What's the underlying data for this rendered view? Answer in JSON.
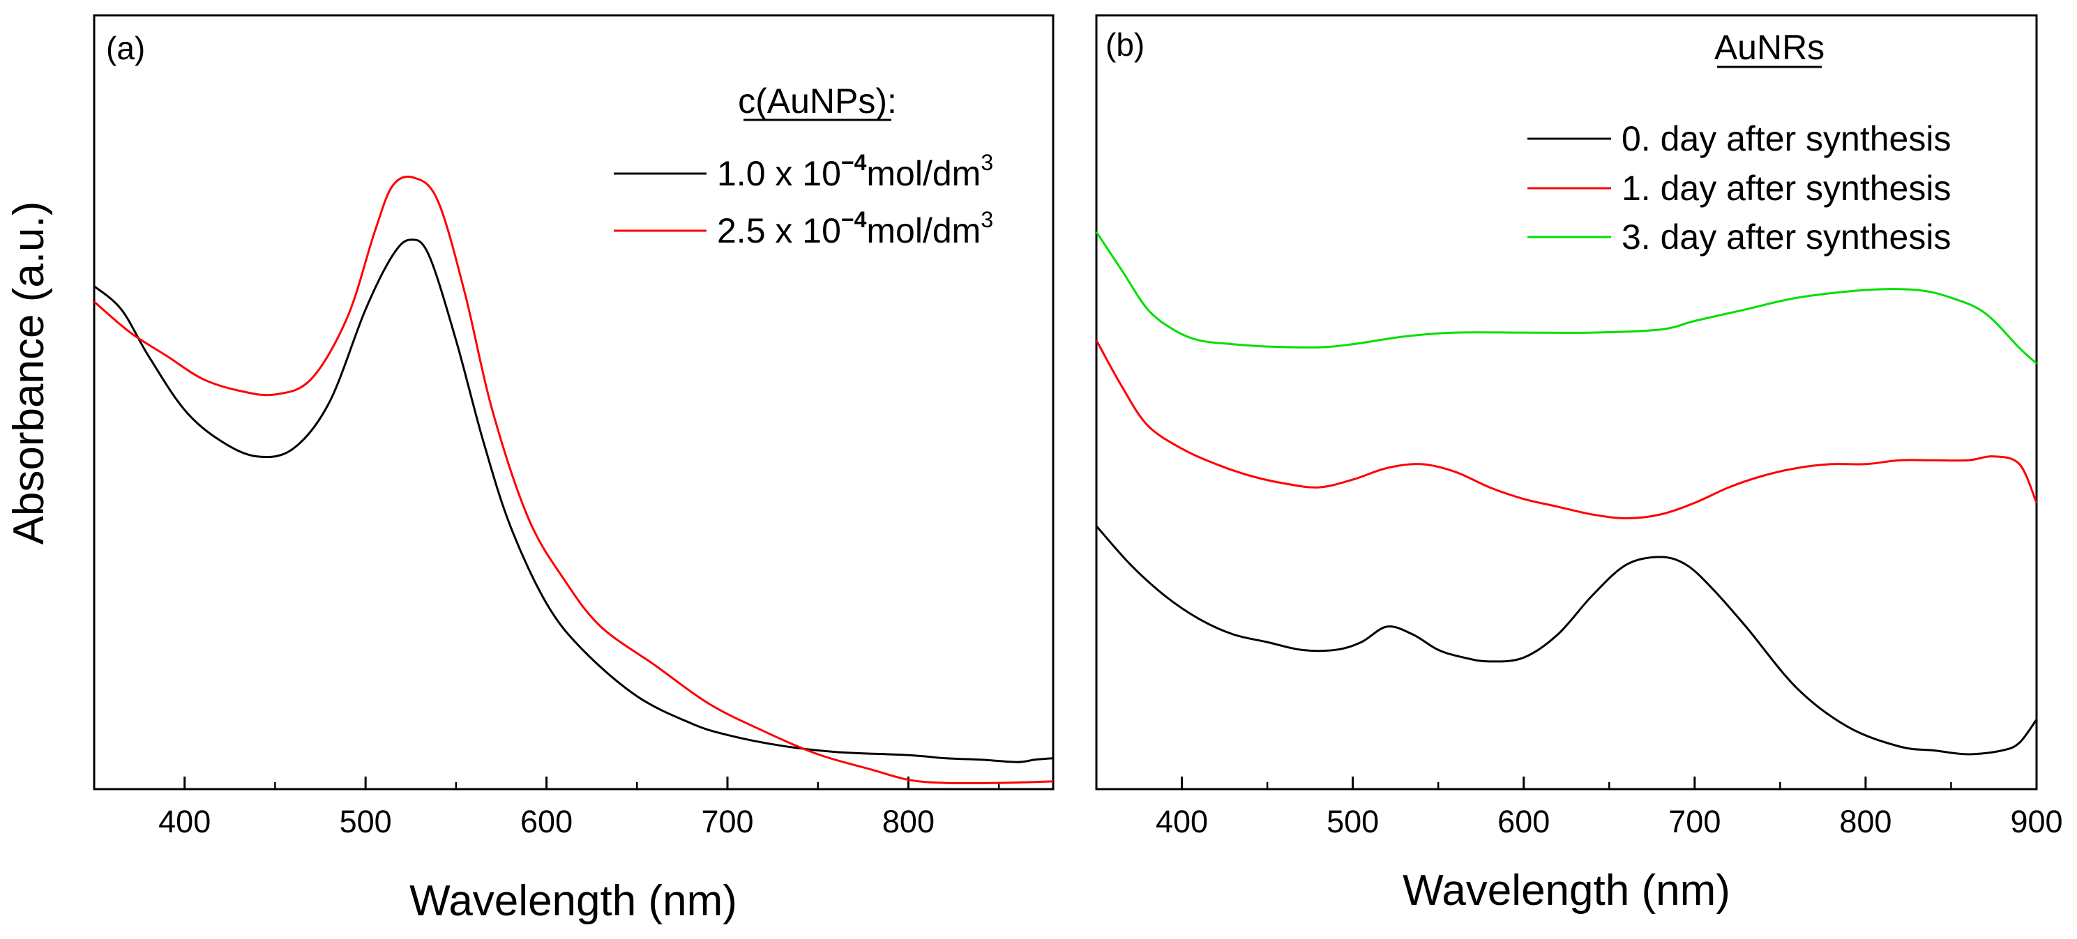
{
  "figure": {
    "ylabel": "Absorbance (a.u.)"
  },
  "chart_data": [
    {
      "type": "line",
      "panel_label": "(a)",
      "xlabel": "Wavelength (nm)",
      "ylabel": "Absorbance (a.u.)",
      "xlim": [
        350,
        880
      ],
      "ylim": [
        0,
        1.0
      ],
      "xticks": [
        400,
        500,
        600,
        700,
        800
      ],
      "xtick_labels": [
        "400",
        "500",
        "600",
        "700",
        "800"
      ],
      "yticks_shown": false,
      "grid": false,
      "legend": {
        "title": "c(AuNPs):",
        "position": "top-right",
        "entries": [
          {
            "prefix": "1.0 x 10",
            "exponent": "−4",
            "unit": "mol/dm",
            "unit_exp": "3"
          },
          {
            "prefix": "2.5 x 10",
            "exponent": "−4",
            "unit": "mol/dm",
            "unit_exp": "3"
          }
        ]
      },
      "series": [
        {
          "name": "1.0 x 10^-4 mol/dm^3",
          "color": "#000000",
          "x": [
            350,
            365,
            380,
            400,
            420,
            440,
            460,
            480,
            500,
            515,
            525,
            535,
            550,
            565,
            580,
            600,
            620,
            650,
            680,
            700,
            730,
            760,
            800,
            820,
            840,
            860,
            870,
            880
          ],
          "y": [
            0.65,
            0.62,
            0.56,
            0.49,
            0.45,
            0.43,
            0.44,
            0.5,
            0.62,
            0.69,
            0.71,
            0.69,
            0.58,
            0.45,
            0.34,
            0.24,
            0.18,
            0.12,
            0.085,
            0.07,
            0.056,
            0.048,
            0.044,
            0.04,
            0.038,
            0.035,
            0.038,
            0.04
          ]
        },
        {
          "name": "2.5 x 10^-4 mol/dm^3",
          "color": "#ff0000",
          "x": [
            350,
            370,
            390,
            410,
            430,
            450,
            470,
            490,
            505,
            515,
            527,
            540,
            555,
            570,
            590,
            610,
            630,
            660,
            690,
            720,
            750,
            780,
            800,
            820,
            850,
            880
          ],
          "y": [
            0.63,
            0.59,
            0.56,
            0.53,
            0.515,
            0.51,
            0.53,
            0.61,
            0.72,
            0.78,
            0.79,
            0.76,
            0.64,
            0.49,
            0.35,
            0.27,
            0.21,
            0.16,
            0.11,
            0.075,
            0.045,
            0.025,
            0.012,
            0.008,
            0.008,
            0.01
          ]
        }
      ]
    },
    {
      "type": "line",
      "panel_label": "(b)",
      "xlabel": "Wavelength (nm)",
      "ylabel": "",
      "xlim": [
        350,
        900
      ],
      "ylim": [
        0,
        1.0
      ],
      "xticks": [
        400,
        500,
        600,
        700,
        800,
        900
      ],
      "xtick_labels": [
        "400",
        "500",
        "600",
        "700",
        "800",
        "900"
      ],
      "yticks_shown": false,
      "grid": false,
      "legend": {
        "title": "AuNRs",
        "position": "top-right",
        "entries": [
          {
            "label": "0. day after synthesis"
          },
          {
            "label": "1. day after synthesis"
          },
          {
            "label": "3. day after synthesis"
          }
        ]
      },
      "series": [
        {
          "name": "0. day after synthesis",
          "color": "#000000",
          "x": [
            350,
            370,
            390,
            410,
            430,
            450,
            470,
            490,
            505,
            520,
            535,
            550,
            565,
            580,
            600,
            620,
            640,
            660,
            680,
            695,
            710,
            730,
            760,
            790,
            820,
            840,
            860,
            880,
            890,
            900
          ],
          "y": [
            0.34,
            0.29,
            0.25,
            0.22,
            0.2,
            0.19,
            0.18,
            0.18,
            0.19,
            0.21,
            0.2,
            0.18,
            0.17,
            0.165,
            0.17,
            0.2,
            0.25,
            0.29,
            0.3,
            0.29,
            0.26,
            0.21,
            0.13,
            0.08,
            0.055,
            0.05,
            0.045,
            0.05,
            0.06,
            0.09
          ]
        },
        {
          "name": "1. day after synthesis",
          "color": "#ff0000",
          "x": [
            350,
            365,
            380,
            400,
            420,
            440,
            460,
            480,
            500,
            520,
            540,
            560,
            580,
            600,
            620,
            640,
            660,
            680,
            700,
            720,
            740,
            760,
            780,
            800,
            820,
            840,
            860,
            875,
            890,
            900
          ],
          "y": [
            0.58,
            0.52,
            0.47,
            0.44,
            0.42,
            0.405,
            0.395,
            0.39,
            0.4,
            0.415,
            0.42,
            0.41,
            0.39,
            0.375,
            0.365,
            0.355,
            0.35,
            0.355,
            0.37,
            0.39,
            0.405,
            0.415,
            0.42,
            0.42,
            0.425,
            0.425,
            0.425,
            0.43,
            0.42,
            0.37
          ]
        },
        {
          "name": "3. day after synthesis",
          "color": "#00e000",
          "x": [
            350,
            365,
            380,
            395,
            410,
            430,
            450,
            480,
            500,
            530,
            560,
            600,
            640,
            680,
            700,
            730,
            760,
            800,
            830,
            850,
            870,
            890,
            900
          ],
          "y": [
            0.72,
            0.67,
            0.62,
            0.594,
            0.58,
            0.575,
            0.572,
            0.571,
            0.575,
            0.585,
            0.59,
            0.59,
            0.59,
            0.594,
            0.605,
            0.62,
            0.635,
            0.645,
            0.645,
            0.635,
            0.615,
            0.57,
            0.55
          ]
        }
      ]
    }
  ]
}
